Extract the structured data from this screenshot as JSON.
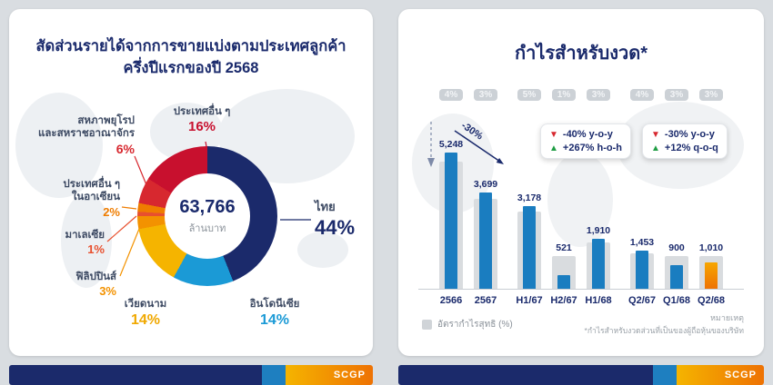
{
  "brand": {
    "logo_text": "SCGP"
  },
  "chart_data": [
    {
      "type": "pie",
      "title": "สัดส่วนรายได้จากการขายแบ่งตามประเทศลูกค้า ครึ่งปีแรกของปี 2568",
      "center_value": "63,766",
      "center_unit": "ล้านบาท",
      "slices": [
        {
          "label": "ไทย",
          "value": 44,
          "pct": "44%",
          "color": "#1b2a6b"
        },
        {
          "label": "อินโดนีเซีย",
          "value": 14,
          "pct": "14%",
          "color": "#1b9ad6"
        },
        {
          "label": "เวียดนาม",
          "value": 14,
          "pct": "14%",
          "color": "#f5b400"
        },
        {
          "label": "ฟิลิปปินส์",
          "value": 3,
          "pct": "3%",
          "color": "#f39200"
        },
        {
          "label": "มาเลเซีย",
          "value": 1,
          "pct": "1%",
          "color": "#e8502e"
        },
        {
          "label": "ประเทศอื่น ๆ",
          "label2": "ในอาเซียน",
          "value": 2,
          "pct": "2%",
          "color": "#ef7d00"
        },
        {
          "label": "สหภาพยุโรป",
          "label2": "และสหราชอาณาจักร",
          "value": 6,
          "pct": "6%",
          "color": "#d7282f"
        },
        {
          "label": "ประเทศอื่น ๆ",
          "value": 16,
          "pct": "16%",
          "color": "#c8102e"
        }
      ]
    },
    {
      "type": "bar",
      "title": "กำไรสำหรับงวด*",
      "categories": [
        "2566",
        "2567",
        "H1/67",
        "H2/67",
        "H1/68",
        "Q2/67",
        "Q1/68",
        "Q2/68"
      ],
      "values": [
        5248,
        3699,
        3178,
        521,
        1910,
        1453,
        900,
        1010
      ],
      "value_labels": [
        "5,248",
        "3,699",
        "3,178",
        "521",
        "1,910",
        "1,453",
        "900",
        "1,010"
      ],
      "margin_labels": [
        "4%",
        "3%",
        "5%",
        "1%",
        "3%",
        "4%",
        "3%",
        "3%"
      ],
      "groups": [
        [
          0,
          1
        ],
        [
          2,
          3,
          4
        ],
        [
          5,
          6,
          7
        ]
      ],
      "ylim": [
        0,
        5600
      ],
      "bar_color": "#1a7dc0",
      "highlight_color": "#ee7203",
      "highlight_index": 7,
      "legend": "อัตรากำไรสุทธิ (%)"
    }
  ],
  "left_panel": {
    "title_line1": "สัดส่วนรายได้จากการขายแบ่งตามประเทศลูกค้า",
    "title_line2": "ครึ่งปีแรกของปี 2568"
  },
  "right_panel": {
    "title": "กำไรสำหรับงวด*",
    "annotation_arrow": "-30%",
    "badge_yoy_hoh": {
      "line1": "-40% y-o-y",
      "line2": "+267% h-o-h"
    },
    "badge_yoy_qoq": {
      "line1": "-30% y-o-y",
      "line2": "+12% q-o-q"
    },
    "legend_label": "อัตรากำไรสุทธิ (%)",
    "note_title": "หมายเหตุ",
    "note_body": "*กำไรสำหรับงวดส่วนที่เป็นของผู้ถือหุ้นของบริษัท"
  }
}
